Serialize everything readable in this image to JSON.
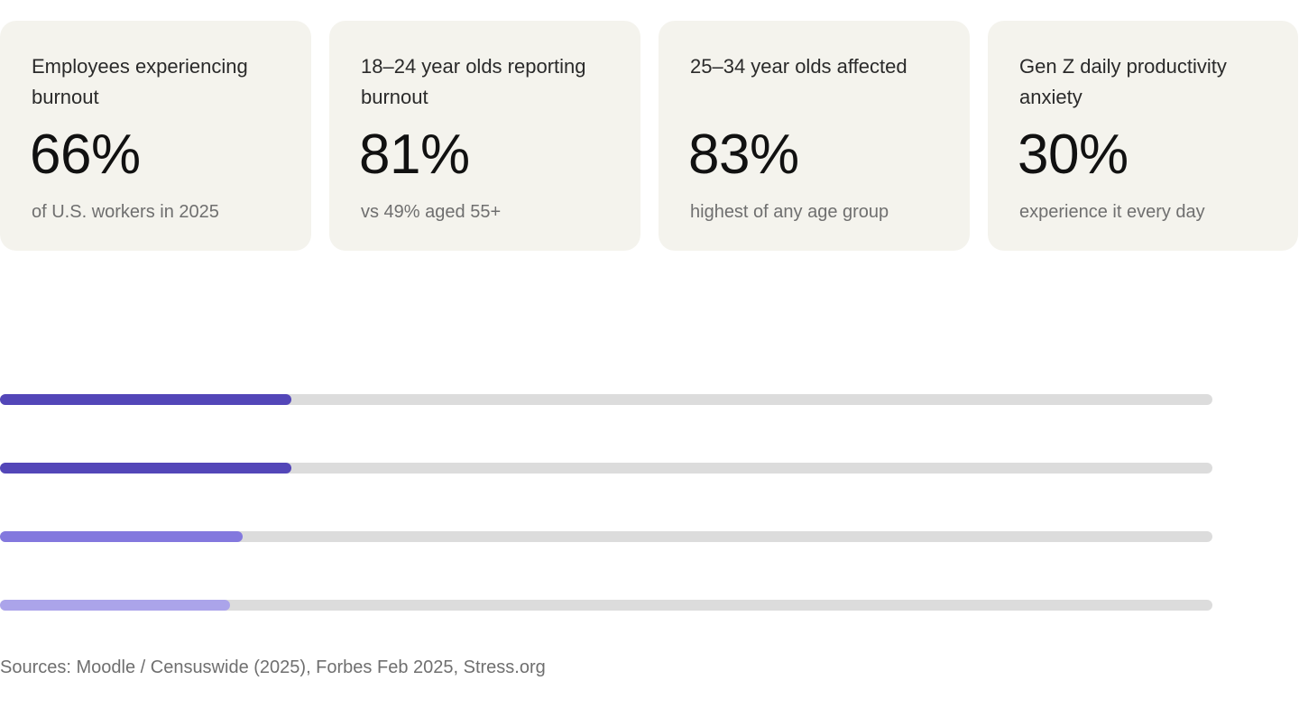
{
  "stats": [
    {
      "label": "Employees experiencing burnout",
      "value": "66%",
      "sub": "of U.S. workers in 2025"
    },
    {
      "label": "18–24 year olds reporting burnout",
      "value": "81%",
      "sub": "vs 49% aged 55+"
    },
    {
      "label": "25–34 year olds affected",
      "value": "83%",
      "sub": "highest of any age group"
    },
    {
      "label": "Gen Z daily productivity anxiety",
      "value": "30%",
      "sub": "experience it every day"
    }
  ],
  "bars": [
    {
      "fill_fraction": 0.24,
      "color": "#5346b8"
    },
    {
      "fill_fraction": 0.24,
      "color": "#5346b8"
    },
    {
      "fill_fraction": 0.2,
      "color": "#8378de"
    },
    {
      "fill_fraction": 0.19,
      "color": "#aba4ea"
    }
  ],
  "bar_track_color": "#dcdcdc",
  "sources": "Sources: Moodle / Censuswide (2025), Forbes Feb 2025, Stress.org"
}
